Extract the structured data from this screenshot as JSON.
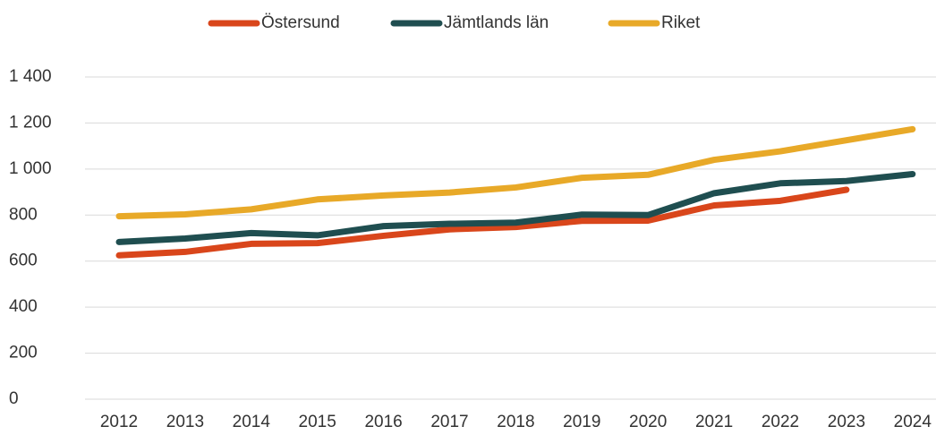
{
  "chart_data": {
    "type": "line",
    "categories": [
      "2012",
      "2013",
      "2014",
      "2015",
      "2016",
      "2017",
      "2018",
      "2019",
      "2020",
      "2021",
      "2022",
      "2023",
      "2024"
    ],
    "series": [
      {
        "name": "Östersund",
        "color": "#d9461b",
        "values": [
          625,
          640,
          675,
          678,
          710,
          738,
          748,
          775,
          776,
          842,
          862,
          910,
          null
        ]
      },
      {
        "name": "Jämtlands län",
        "color": "#1f4e50",
        "values": [
          683,
          698,
          722,
          712,
          752,
          762,
          767,
          802,
          800,
          895,
          938,
          948,
          978
        ]
      },
      {
        "name": "Riket",
        "color": "#e8a928",
        "values": [
          795,
          803,
          825,
          868,
          885,
          898,
          920,
          962,
          975,
          1040,
          1077,
          1125,
          1173
        ]
      }
    ],
    "ylim": [
      0,
      1400
    ],
    "yticks": [
      0,
      200,
      400,
      600,
      800,
      {
        "value": 1000,
        "label": "1 000"
      },
      {
        "value": 1200,
        "label": "1 200"
      },
      {
        "value": 1400,
        "label": "1 400"
      }
    ],
    "grid": true,
    "legend": "top"
  }
}
